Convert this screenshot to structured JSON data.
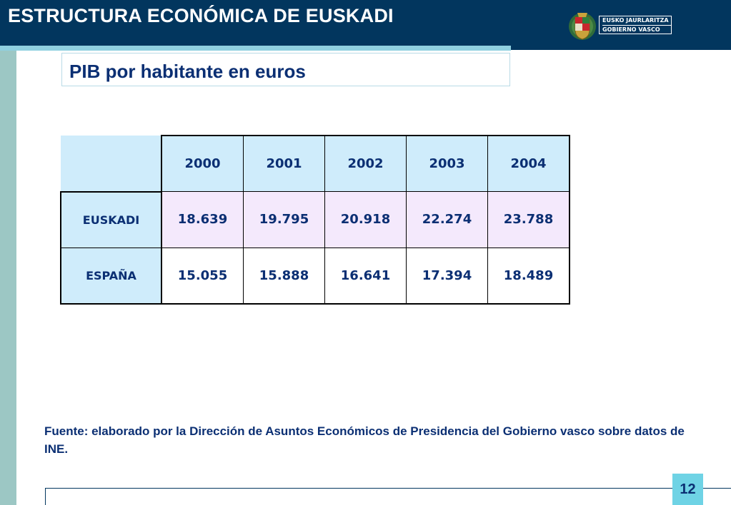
{
  "header": {
    "title": "ESTRUCTURA ECONÓMICA DE EUSKADI",
    "logo_line1": "EUSKO JAURLARITZA",
    "logo_line2": "GOBIERNO VASCO"
  },
  "subtitle": "PIB por habitante en euros",
  "table": {
    "years": [
      "2000",
      "2001",
      "2002",
      "2003",
      "2004"
    ],
    "rows": [
      {
        "label": "EUSKADI",
        "values": [
          "18.639",
          "19.795",
          "20.918",
          "22.274",
          "23.788"
        ]
      },
      {
        "label": "ESPAÑA",
        "values": [
          "15.055",
          "15.888",
          "16.641",
          "17.394",
          "18.489"
        ]
      }
    ]
  },
  "source": "Fuente: elaborado por la Dirección de Asuntos Económicos de Presidencia del  Gobierno vasco sobre datos de INE.",
  "page_number": "12",
  "colors": {
    "header_bg": "#02365e",
    "accent": "#8fd0e0",
    "left_bar": "#9cc7c4",
    "text_dark_blue": "#0b2f73",
    "header_cell": "#cfecfb",
    "euskadi_row": "#f4e9fc"
  }
}
